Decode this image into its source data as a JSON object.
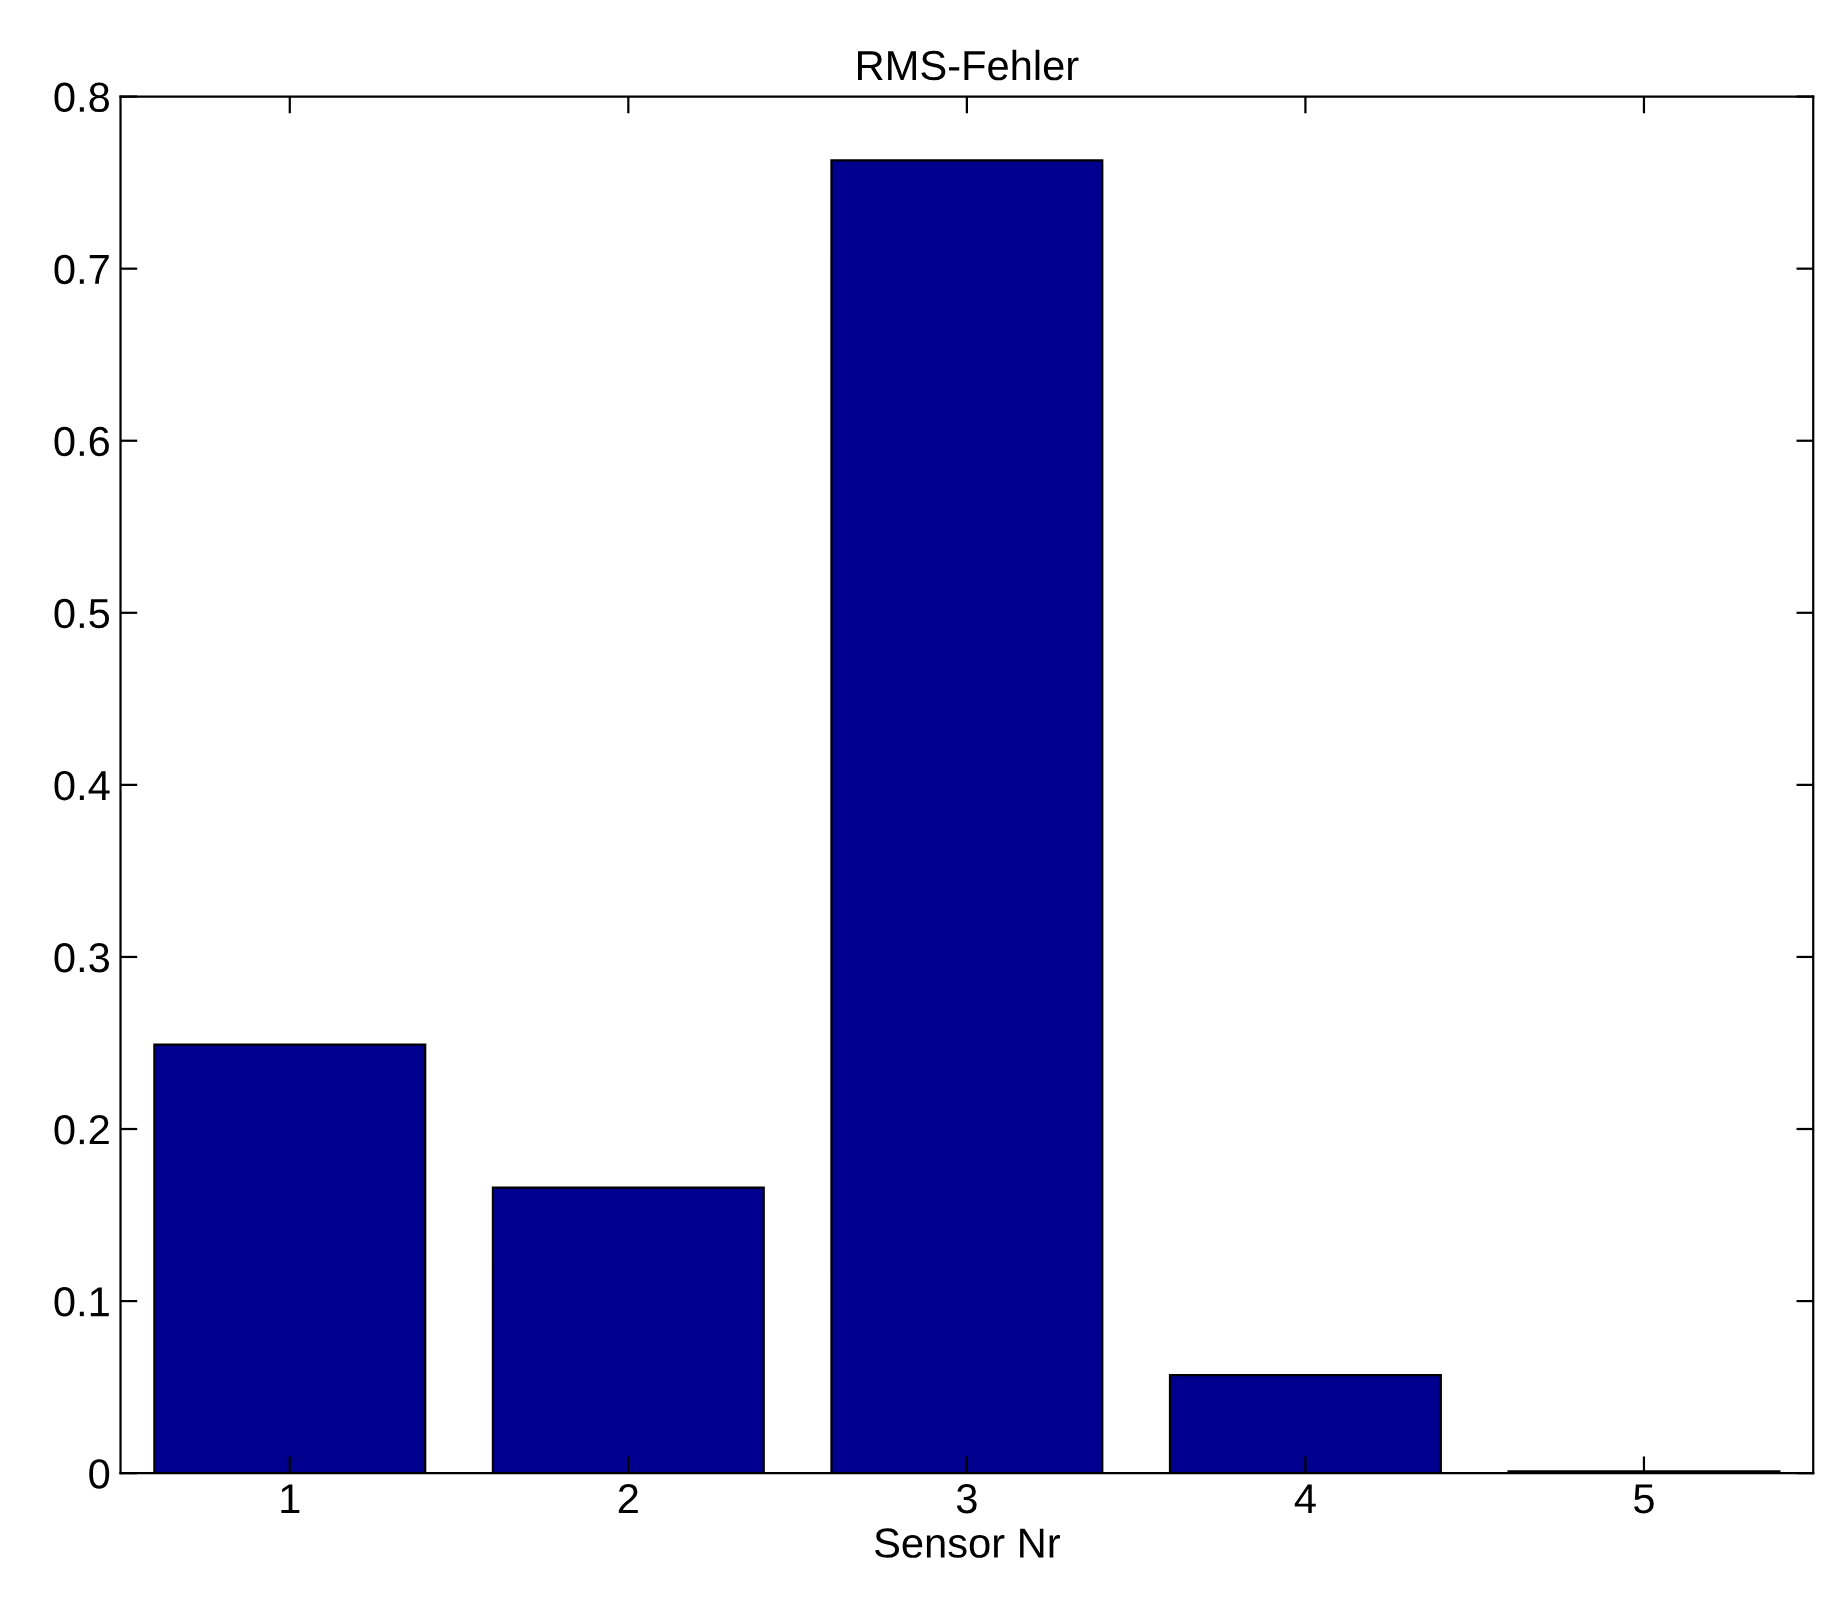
{
  "chart_data": {
    "type": "bar",
    "title": "RMS-Fehler",
    "xlabel": "Sensor Nr",
    "categories": [
      "1",
      "2",
      "3",
      "4",
      "5"
    ],
    "values": [
      0.249,
      0.166,
      0.763,
      0.057,
      0.001
    ],
    "color": "#00008f",
    "ylim": [
      0,
      0.8
    ],
    "yticks": [
      0,
      0.1,
      0.2,
      0.3,
      0.4,
      0.5,
      0.6,
      0.7,
      0.8
    ]
  }
}
